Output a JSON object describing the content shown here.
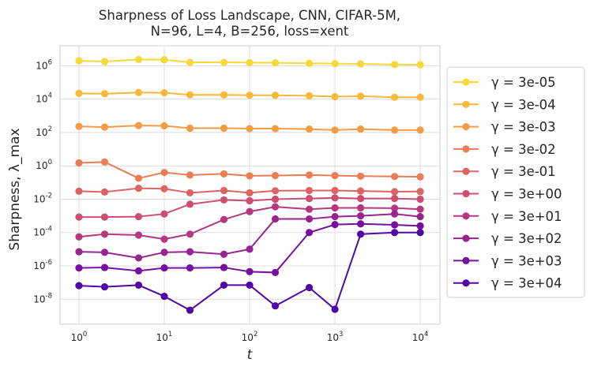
{
  "chart_data": {
    "type": "line",
    "title": [
      "Sharpness of Loss Landscape, CNN, CIFAR-5M,",
      "N=96, L=4, B=256, loss=xent"
    ],
    "xlabel": "t",
    "ylabel": "Sharpness, λ_max",
    "xscale": "log",
    "yscale": "log",
    "xlim": [
      0.6,
      17000
    ],
    "ylim_log10": [
      -9.5,
      7.2
    ],
    "x_ticks": [
      {
        "base": "10",
        "exp": "0",
        "value": 1
      },
      {
        "base": "10",
        "exp": "1",
        "value": 10
      },
      {
        "base": "10",
        "exp": "2",
        "value": 100
      },
      {
        "base": "10",
        "exp": "3",
        "value": 1000
      },
      {
        "base": "10",
        "exp": "4",
        "value": 10000
      }
    ],
    "y_ticks": [
      {
        "base": "10",
        "exp": "-8",
        "value": -8
      },
      {
        "base": "10",
        "exp": "-6",
        "value": -6
      },
      {
        "base": "10",
        "exp": "-4",
        "value": -4
      },
      {
        "base": "10",
        "exp": "-2",
        "value": -2
      },
      {
        "base": "10",
        "exp": "0",
        "value": 0
      },
      {
        "base": "10",
        "exp": "2",
        "value": 2
      },
      {
        "base": "10",
        "exp": "4",
        "value": 4
      },
      {
        "base": "10",
        "exp": "6",
        "value": 6
      }
    ],
    "grid": true,
    "legend_position": "outside-right",
    "x": [
      1,
      2,
      5,
      10,
      20,
      50,
      100,
      200,
      500,
      1000,
      2000,
      5000,
      10000
    ],
    "series": [
      {
        "name": "γ =  3e-05",
        "color": "#f7d83b",
        "values": [
          2000000.0,
          1800000.0,
          2400000.0,
          2300000.0,
          1600000.0,
          1600000.0,
          1550000.0,
          1500000.0,
          1400000.0,
          1350000.0,
          1300000.0,
          1200000.0,
          1150000.0
        ]
      },
      {
        "name": "γ =  3e-04",
        "color": "#f8b83a",
        "values": [
          22000.0,
          21000.0,
          25000.0,
          24000.0,
          18000.0,
          18000.0,
          17000.0,
          17000.0,
          16000.0,
          14000.0,
          15000.0,
          13000.0,
          13000.0
        ]
      },
      {
        "name": "γ =  3e-03",
        "color": "#f39b45",
        "values": [
          230,
          210,
          260,
          250,
          180,
          180,
          170,
          170,
          160,
          140,
          160,
          140,
          140
        ]
      },
      {
        "name": "γ =  3e-02",
        "color": "#eb7d55",
        "values": [
          1.5,
          1.7,
          0.18,
          0.4,
          0.28,
          0.33,
          0.25,
          0.26,
          0.28,
          0.26,
          0.24,
          0.23,
          0.22
        ]
      },
      {
        "name": "γ =  3e-01",
        "color": "#dd6462",
        "values": [
          0.03,
          0.027,
          0.045,
          0.042,
          0.024,
          0.033,
          0.024,
          0.032,
          0.033,
          0.033,
          0.031,
          0.028,
          0.029
        ]
      },
      {
        "name": "γ =  3e+00",
        "color": "#cd4e70",
        "values": [
          0.00085,
          0.00085,
          0.0009,
          0.0013,
          0.005,
          0.009,
          0.008,
          0.01,
          0.011,
          0.012,
          0.011,
          0.011,
          0.01
        ]
      },
      {
        "name": "γ =  3e+01",
        "color": "#b5377e",
        "values": [
          5.5e-05,
          8e-05,
          7e-05,
          4e-05,
          8e-05,
          0.0006,
          0.0018,
          0.0035,
          0.0025,
          0.003,
          0.003,
          0.0029,
          0.0025
        ]
      },
      {
        "name": "γ =  3e+02",
        "color": "#97248f",
        "values": [
          7e-06,
          6.5e-06,
          3e-06,
          6.5e-06,
          7e-06,
          5e-06,
          1e-05,
          0.00065,
          0.00065,
          0.0009,
          0.001,
          0.0013,
          0.0009
        ]
      },
      {
        "name": "γ =  3e+03",
        "color": "#7710a0",
        "values": [
          7.5e-07,
          8e-07,
          5e-07,
          7.5e-07,
          7.5e-07,
          8e-07,
          4.5e-07,
          4e-07,
          0.0001,
          0.0003,
          0.00033,
          0.00029,
          0.00025
        ]
      },
      {
        "name": "γ =  3e+04",
        "color": "#5008a5",
        "values": [
          6.5e-08,
          5.5e-08,
          7e-08,
          1.5e-08,
          2.2e-09,
          7e-08,
          7e-08,
          4e-09,
          5e-08,
          2.5e-09,
          8e-05,
          0.0001,
          0.0001
        ]
      }
    ]
  }
}
